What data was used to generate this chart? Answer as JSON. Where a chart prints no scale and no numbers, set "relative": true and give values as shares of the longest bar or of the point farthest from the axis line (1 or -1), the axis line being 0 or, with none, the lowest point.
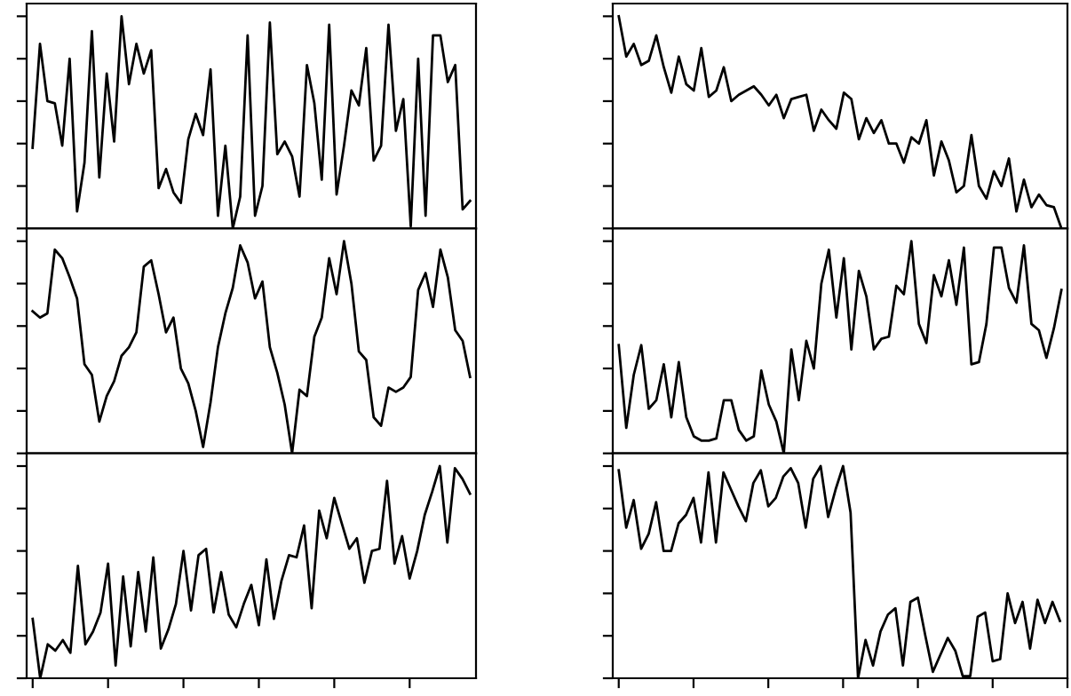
{
  "chart_data": [
    {
      "type": "line",
      "relative": true,
      "tick_labels": false,
      "categories": [
        null,
        null,
        null,
        null,
        null,
        null,
        null,
        null,
        null,
        null,
        null,
        null,
        null,
        null,
        null,
        null,
        null,
        null,
        null,
        null,
        null,
        null,
        null,
        null,
        null,
        null,
        null,
        null,
        null,
        null,
        null,
        null,
        null,
        null,
        null,
        null,
        null,
        null,
        null,
        null,
        null,
        null,
        null,
        null,
        null,
        null,
        null,
        null,
        null,
        null,
        null,
        null,
        null,
        null,
        null,
        null,
        null,
        null,
        null,
        null
      ],
      "series": [
        {
          "color": "#000000",
          "values": [
            0.38,
            0.87,
            0.6,
            0.59,
            0.39,
            0.8,
            0.08,
            0.31,
            0.93,
            0.24,
            0.73,
            0.41,
            1.0,
            0.68,
            0.87,
            0.73,
            0.84,
            0.19,
            0.28,
            0.17,
            0.12,
            0.42,
            0.54,
            0.44,
            0.75,
            0.06,
            0.39,
            0,
            0.15,
            0.91,
            0.06,
            0.2,
            0.97,
            0.35,
            0.41,
            0.34,
            0.15,
            0.77,
            0.59,
            0.23,
            0.96,
            0.16,
            0.39,
            0.65,
            0.58,
            0.85,
            0.32,
            0.39,
            0.96,
            0.46,
            0.61,
            0.01,
            0.8,
            0.06,
            0.91,
            0.91,
            0.69,
            0.77,
            0.09,
            0.13
          ]
        }
      ]
    },
    {
      "type": "line",
      "relative": true,
      "tick_labels": false,
      "categories": [
        null,
        null,
        null,
        null,
        null,
        null,
        null,
        null,
        null,
        null,
        null,
        null,
        null,
        null,
        null,
        null,
        null,
        null,
        null,
        null,
        null,
        null,
        null,
        null,
        null,
        null,
        null,
        null,
        null,
        null,
        null,
        null,
        null,
        null,
        null,
        null,
        null,
        null,
        null,
        null,
        null,
        null,
        null,
        null,
        null,
        null,
        null,
        null,
        null,
        null,
        null,
        null,
        null,
        null,
        null,
        null,
        null,
        null,
        null,
        null
      ],
      "series": [
        {
          "color": "#000000",
          "values": [
            1.0,
            0.81,
            0.87,
            0.77,
            0.79,
            0.91,
            0.76,
            0.64,
            0.81,
            0.68,
            0.65,
            0.85,
            0.62,
            0.65,
            0.76,
            0.6,
            0.63,
            0.65,
            0.67,
            0.63,
            0.58,
            0.63,
            0.52,
            0.61,
            0.62,
            0.63,
            0.46,
            0.56,
            0.51,
            0.47,
            0.64,
            0.61,
            0.42,
            0.52,
            0.45,
            0.51,
            0.4,
            0.4,
            0.31,
            0.43,
            0.4,
            0.51,
            0.25,
            0.41,
            0.32,
            0.17,
            0.2,
            0.44,
            0.2,
            0.14,
            0.27,
            0.2,
            0.33,
            0.08,
            0.23,
            0.1,
            0.16,
            0.11,
            0.1,
            0
          ]
        }
      ]
    },
    {
      "type": "line",
      "relative": true,
      "tick_labels": false,
      "categories": [
        null,
        null,
        null,
        null,
        null,
        null,
        null,
        null,
        null,
        null,
        null,
        null,
        null,
        null,
        null,
        null,
        null,
        null,
        null,
        null,
        null,
        null,
        null,
        null,
        null,
        null,
        null,
        null,
        null,
        null,
        null,
        null,
        null,
        null,
        null,
        null,
        null,
        null,
        null,
        null,
        null,
        null,
        null,
        null,
        null,
        null,
        null,
        null,
        null,
        null,
        null,
        null,
        null,
        null,
        null,
        null,
        null,
        null,
        null,
        null
      ],
      "series": [
        {
          "color": "#000000",
          "values": [
            0.67,
            0.64,
            0.66,
            0.96,
            0.92,
            0.83,
            0.73,
            0.42,
            0.37,
            0.15,
            0.27,
            0.34,
            0.46,
            0.5,
            0.57,
            0.88,
            0.91,
            0.75,
            0.57,
            0.64,
            0.4,
            0.33,
            0.2,
            0.03,
            0.24,
            0.5,
            0.66,
            0.78,
            0.98,
            0.9,
            0.73,
            0.81,
            0.5,
            0.38,
            0.23,
            0,
            0.3,
            0.27,
            0.55,
            0.64,
            0.92,
            0.75,
            1.0,
            0.8,
            0.48,
            0.44,
            0.17,
            0.13,
            0.31,
            0.29,
            0.31,
            0.36,
            0.77,
            0.85,
            0.69,
            0.96,
            0.83,
            0.58,
            0.53,
            0.36
          ]
        }
      ]
    },
    {
      "type": "line",
      "relative": true,
      "tick_labels": false,
      "categories": [
        null,
        null,
        null,
        null,
        null,
        null,
        null,
        null,
        null,
        null,
        null,
        null,
        null,
        null,
        null,
        null,
        null,
        null,
        null,
        null,
        null,
        null,
        null,
        null,
        null,
        null,
        null,
        null,
        null,
        null,
        null,
        null,
        null,
        null,
        null,
        null,
        null,
        null,
        null,
        null,
        null,
        null,
        null,
        null,
        null,
        null,
        null,
        null,
        null,
        null,
        null,
        null,
        null,
        null,
        null,
        null,
        null,
        null,
        null,
        null
      ],
      "series": [
        {
          "color": "#000000",
          "values": [
            0.51,
            0.12,
            0.37,
            0.51,
            0.21,
            0.25,
            0.42,
            0.17,
            0.43,
            0.17,
            0.08,
            0.06,
            0.06,
            0.07,
            0.25,
            0.25,
            0.11,
            0.06,
            0.08,
            0.39,
            0.23,
            0.15,
            0,
            0.49,
            0.25,
            0.53,
            0.4,
            0.8,
            0.96,
            0.64,
            0.92,
            0.49,
            0.86,
            0.74,
            0.49,
            0.54,
            0.55,
            0.79,
            0.75,
            1.0,
            0.61,
            0.52,
            0.84,
            0.74,
            0.91,
            0.7,
            0.97,
            0.42,
            0.43,
            0.61,
            0.97,
            0.97,
            0.78,
            0.71,
            0.98,
            0.61,
            0.58,
            0.45,
            0.59,
            0.77
          ]
        }
      ]
    },
    {
      "type": "line",
      "relative": true,
      "tick_labels": false,
      "categories": [
        null,
        null,
        null,
        null,
        null,
        null,
        null,
        null,
        null,
        null,
        null,
        null,
        null,
        null,
        null,
        null,
        null,
        null,
        null,
        null,
        null,
        null,
        null,
        null,
        null,
        null,
        null,
        null,
        null,
        null,
        null,
        null,
        null,
        null,
        null,
        null,
        null,
        null,
        null,
        null,
        null,
        null,
        null,
        null,
        null,
        null,
        null,
        null,
        null,
        null,
        null,
        null,
        null,
        null,
        null,
        null,
        null,
        null,
        null
      ],
      "series": [
        {
          "color": "#000000",
          "values": [
            0.28,
            0,
            0.16,
            0.13,
            0.18,
            0.12,
            0.53,
            0.16,
            0.22,
            0.31,
            0.54,
            0.06,
            0.48,
            0.15,
            0.5,
            0.22,
            0.57,
            0.14,
            0.23,
            0.35,
            0.6,
            0.32,
            0.58,
            0.61,
            0.31,
            0.5,
            0.3,
            0.24,
            0.35,
            0.44,
            0.25,
            0.56,
            0.28,
            0.46,
            0.58,
            0.57,
            0.72,
            0.33,
            0.79,
            0.66,
            0.85,
            0.73,
            0.61,
            0.66,
            0.45,
            0.6,
            0.61,
            0.93,
            0.54,
            0.67,
            0.47,
            0.6,
            0.77,
            0.88,
            1.0,
            0.64,
            0.99,
            0.94,
            0.87
          ]
        }
      ]
    },
    {
      "type": "line",
      "relative": true,
      "tick_labels": false,
      "categories": [
        null,
        null,
        null,
        null,
        null,
        null,
        null,
        null,
        null,
        null,
        null,
        null,
        null,
        null,
        null,
        null,
        null,
        null,
        null,
        null,
        null,
        null,
        null,
        null,
        null,
        null,
        null,
        null,
        null,
        null,
        null,
        null,
        null,
        null,
        null,
        null,
        null,
        null,
        null,
        null,
        null,
        null,
        null,
        null,
        null,
        null,
        null,
        null,
        null,
        null,
        null,
        null,
        null,
        null,
        null,
        null,
        null,
        null,
        null,
        null
      ],
      "series": [
        {
          "color": "#000000",
          "values": [
            0.98,
            0.71,
            0.84,
            0.61,
            0.68,
            0.83,
            0.6,
            0.6,
            0.73,
            0.77,
            0.85,
            0.64,
            0.97,
            0.64,
            0.97,
            0.89,
            0.81,
            0.74,
            0.92,
            0.98,
            0.81,
            0.85,
            0.95,
            0.99,
            0.92,
            0.71,
            0.94,
            1.0,
            0.76,
            0.89,
            1.0,
            0.78,
            0,
            0.18,
            0.06,
            0.22,
            0.3,
            0.33,
            0.06,
            0.36,
            0.38,
            0.2,
            0.03,
            0.11,
            0.19,
            0.13,
            0.01,
            0.01,
            0.29,
            0.31,
            0.08,
            0.09,
            0.4,
            0.26,
            0.36,
            0.14,
            0.37,
            0.26,
            0.36,
            0.27
          ]
        }
      ]
    }
  ]
}
